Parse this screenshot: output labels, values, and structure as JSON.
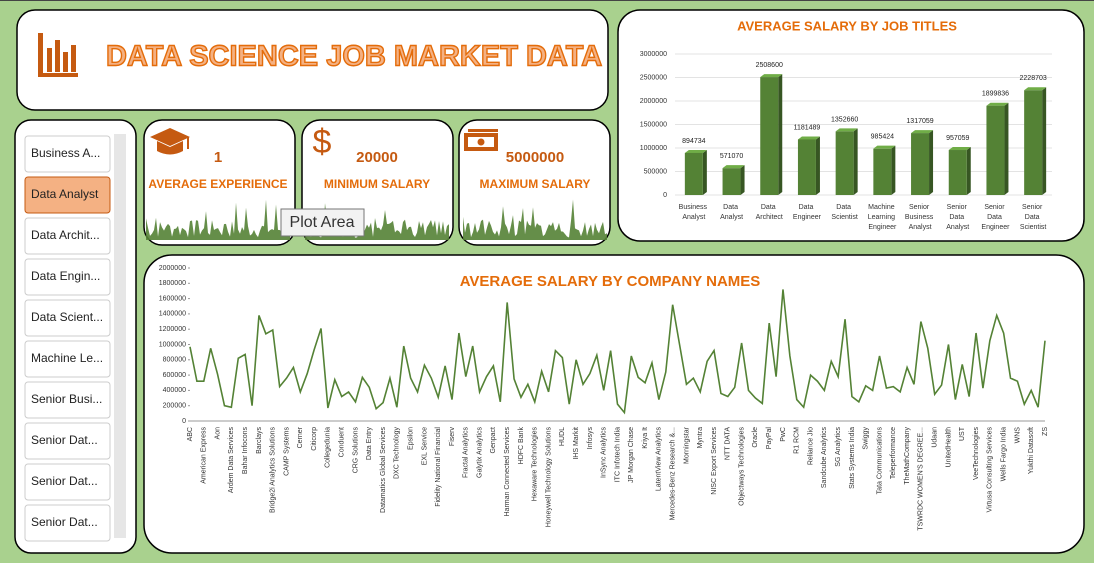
{
  "header": {
    "title": "DATA SCIENCE JOB MARKET DATA"
  },
  "slicer": {
    "items": [
      "Business A...",
      "Data Analyst",
      "Data Archit...",
      "Data Engin...",
      "Data Scient...",
      "Machine Le...",
      "Senior Busi...",
      "Senior Dat...",
      "Senior Dat...",
      "Senior Dat..."
    ],
    "selected": 1
  },
  "kpis": [
    {
      "value": 1,
      "label": "AVERAGE EXPERIENCE"
    },
    {
      "value": 20000,
      "label": "MINIMUM SALARY"
    },
    {
      "value": 5000000,
      "label": "MAXIMUM SALARY"
    }
  ],
  "tooltip": "Plot Area",
  "chart_data": [
    {
      "type": "bar",
      "title": "AVERAGE SALARY BY JOB TITLES",
      "color": "#548235",
      "categories": [
        "Business Analyst",
        "Data Analyst",
        "Data Architect",
        "Data Engineer",
        "Data Scientist",
        "Machine Learning Engineer",
        "Senior Business Analyst",
        "Senior Data Analyst",
        "Senior Data Engineer",
        "Senior Data Scientist"
      ],
      "values": [
        894734,
        571070,
        2508600,
        1181489,
        1352660,
        985424,
        1317059,
        957059,
        1899836,
        2228703
      ],
      "ylim": [
        0,
        3000000
      ],
      "yticks": [
        0,
        500000,
        1000000,
        1500000,
        2000000,
        2500000,
        3000000
      ],
      "grid": true
    },
    {
      "type": "line",
      "title": "AVERAGE SALARY BY COMPANY NAMES",
      "color": "#548235",
      "categories": [
        "ABC",
        null,
        "American Express",
        null,
        "Aon",
        null,
        "Ardem Data Services",
        null,
        "Bahar Infocons",
        null,
        "Barclays",
        null,
        "Bridge2i Analytics Solutions",
        null,
        "CAMP Systems",
        null,
        "Cerner",
        null,
        "Citicorp",
        null,
        "Collegedunia",
        null,
        "Conduent",
        null,
        "CRG Solutions",
        null,
        "Data Entry",
        null,
        "Datamatics Global Services",
        null,
        "DXC Technology",
        null,
        "Epsilon",
        null,
        "EXL Service",
        null,
        "Fidelity National Financial",
        null,
        "Fiserv",
        null,
        "Fractal Analytics",
        null,
        "Galytix Analytics",
        null,
        "Genpact",
        null,
        "Harman Connected Services",
        null,
        "HDFC Bank",
        null,
        "Hexaware Technologies",
        null,
        "Honeywell Technology Solutions",
        null,
        "HUDL",
        null,
        "IHS Markit",
        null,
        "Infosys",
        null,
        "InSync Analytics",
        null,
        "ITC Infotech India",
        null,
        "JP Morgan Chase",
        null,
        "Kriya It",
        null,
        "LatentView Analytics",
        null,
        "Mercedes-Benz Research &...",
        null,
        "Morningstar",
        null,
        "Myntra",
        null,
        "NISC Export Services",
        null,
        "NTT DATA",
        null,
        "Objectways Technologies",
        null,
        "Oracle",
        null,
        "PayPal",
        null,
        "PwC",
        null,
        "R1 RCM",
        null,
        "Reliance Jio",
        null,
        "Sandcube Analytics",
        null,
        "SG Analytics",
        null,
        "Stats Systems India",
        null,
        "Swiggy",
        null,
        "Tata Communications",
        null,
        "Teleperformance",
        null,
        "TheMathCompany",
        null,
        "TSWRDC WOMEN'S DEGREE...",
        null,
        "Udaan",
        null,
        "UnitedHealth",
        null,
        "UST",
        null,
        "VeeTechnologies",
        null,
        "Virtusa Consulting Services",
        null,
        "Wells Fargo India",
        null,
        "WNS",
        null,
        "Yukthi Datasoft",
        null,
        "ZS"
      ],
      "values": [
        970000,
        520000,
        520000,
        950000,
        610000,
        200000,
        180000,
        820000,
        870000,
        200000,
        1380000,
        1140000,
        1190000,
        450000,
        560000,
        700000,
        380000,
        620000,
        930000,
        1210000,
        170000,
        540000,
        320000,
        380000,
        250000,
        570000,
        440000,
        160000,
        240000,
        560000,
        180000,
        980000,
        560000,
        380000,
        730000,
        560000,
        310000,
        720000,
        280000,
        1150000,
        580000,
        980000,
        380000,
        580000,
        720000,
        250000,
        1550000,
        550000,
        310000,
        480000,
        250000,
        650000,
        380000,
        920000,
        830000,
        220000,
        800000,
        480000,
        620000,
        860000,
        400000,
        920000,
        220000,
        110000,
        850000,
        570000,
        500000,
        760000,
        280000,
        640000,
        1520000,
        1000000,
        480000,
        560000,
        380000,
        780000,
        920000,
        360000,
        320000,
        440000,
        1020000,
        400000,
        300000,
        230000,
        1280000,
        580000,
        1720000,
        850000,
        280000,
        180000,
        600000,
        520000,
        400000,
        780000,
        580000,
        1330000,
        320000,
        250000,
        460000,
        400000,
        850000,
        430000,
        450000,
        380000,
        700000,
        480000,
        1300000,
        950000,
        350000,
        470000,
        1000000,
        280000,
        740000,
        320000,
        1150000,
        430000,
        1050000,
        1380000,
        1150000,
        560000,
        520000,
        220000,
        400000,
        180000,
        1050000
      ],
      "ylim": [
        0,
        2000000
      ],
      "yticks": [
        0,
        200000,
        400000,
        600000,
        800000,
        1000000,
        1200000,
        1400000,
        1600000,
        1800000,
        2000000
      ]
    }
  ]
}
